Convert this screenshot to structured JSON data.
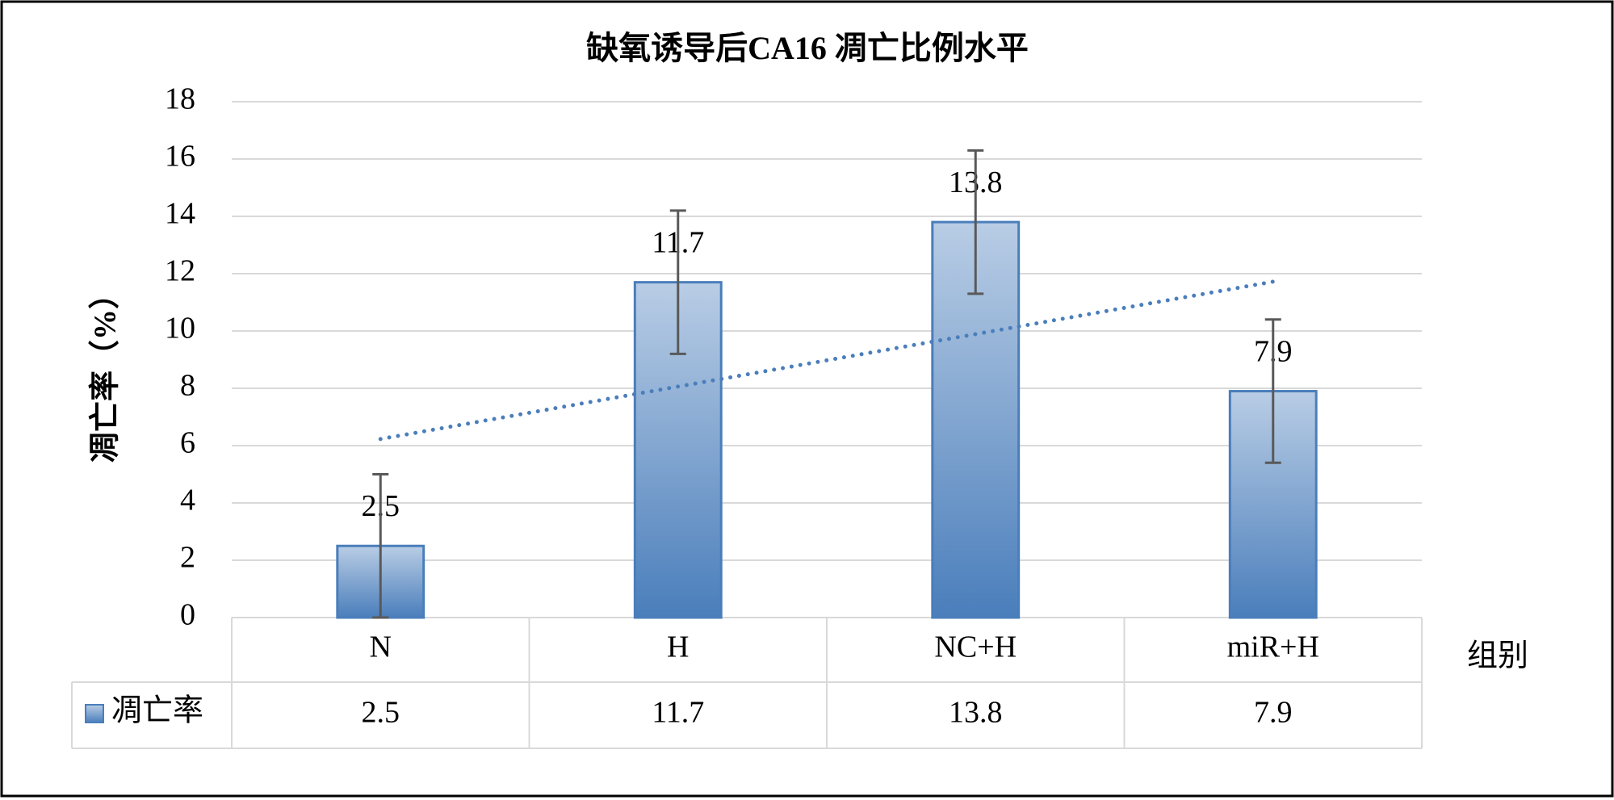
{
  "chart_data": {
    "type": "bar",
    "title": "缺氧诱导后CA16 凋亡比例水平",
    "x_label": "组别",
    "y_label": "凋亡率（%）",
    "categories": [
      "N",
      "H",
      "NC+H",
      "miR+H"
    ],
    "series": [
      {
        "name": "凋亡率",
        "color": "#4a7ebb",
        "values": [
          2.5,
          11.7,
          13.8,
          7.9
        ],
        "errors": [
          2.5,
          2.5,
          2.5,
          2.5
        ]
      }
    ],
    "ylim": [
      0,
      18
    ],
    "yticks": [
      0,
      2,
      4,
      6,
      8,
      10,
      12,
      14,
      16,
      18
    ],
    "grid": true,
    "trendline": "linear",
    "data_table": true
  }
}
